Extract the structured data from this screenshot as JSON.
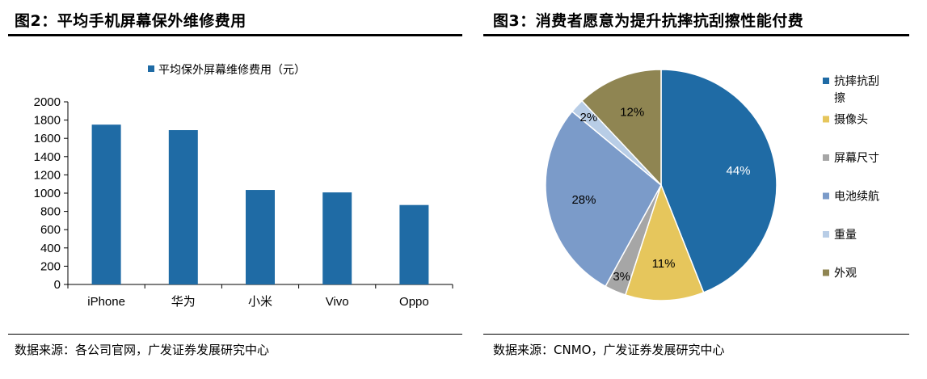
{
  "left_panel": {
    "title": "图2：平均手机屏幕保外维修费用",
    "source": "数据来源：各公司官网，广发证券发展研究中心"
  },
  "right_panel": {
    "title": "图3：消费者愿意为提升抗摔抗刮擦性能付费",
    "source": "数据来源：CNMO，广发证券发展研究中心"
  },
  "chart_data": [
    {
      "type": "bar",
      "title": "",
      "xlabel": "",
      "ylabel": "",
      "categories": [
        "iPhone",
        "华为",
        "小米",
        "Vivo",
        "Oppo"
      ],
      "series": [
        {
          "name": "平均保外屏幕维修费用（元）",
          "values": [
            1750,
            1690,
            1035,
            1008,
            870
          ],
          "color": "#1f6ba5"
        }
      ],
      "ylim": [
        0,
        2000
      ],
      "yticks": [
        "0",
        "200",
        "400",
        "600",
        "800",
        "1000",
        "1200",
        "1400",
        "1600",
        "1800",
        "2000"
      ],
      "legend": "top",
      "grid": false
    },
    {
      "type": "pie",
      "title": "",
      "slices": [
        {
          "name": "抗摔抗刮擦",
          "value": 44,
          "label": "44%",
          "color": "#1f6ba5"
        },
        {
          "name": "摄像头",
          "value": 11,
          "label": "11%",
          "color": "#e6c65c"
        },
        {
          "name": "屏幕尺寸",
          "value": 3,
          "label": "3%",
          "color": "#a6a6a6"
        },
        {
          "name": "电池续航",
          "value": 28,
          "label": "28%",
          "color": "#7b9bc9"
        },
        {
          "name": "重量",
          "value": 2,
          "label": "2%",
          "color": "#b8cde6"
        },
        {
          "name": "外观",
          "value": 12,
          "label": "12%",
          "color": "#8f8552"
        }
      ],
      "legend": "right"
    }
  ]
}
